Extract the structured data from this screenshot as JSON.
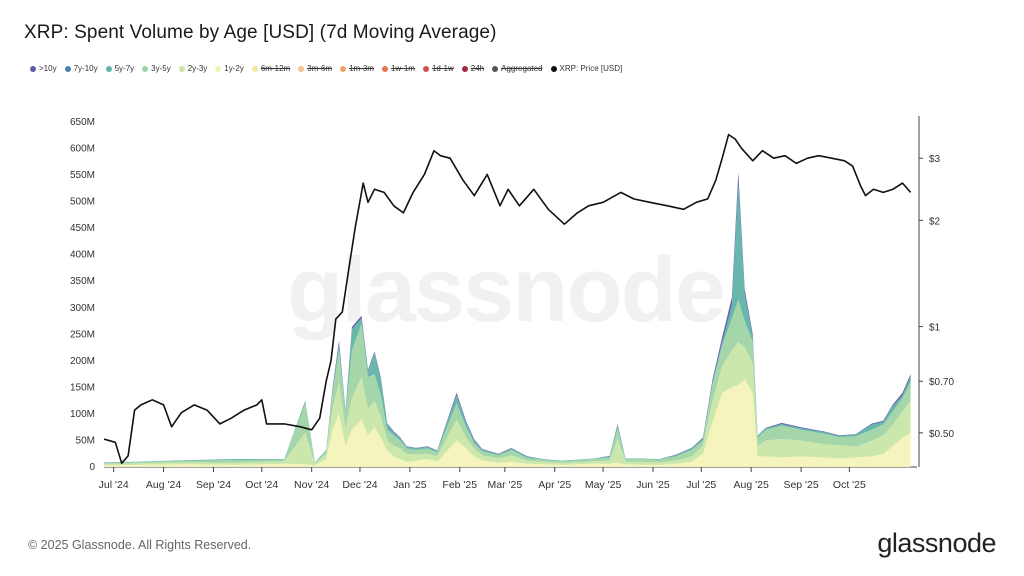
{
  "title": "XRP: Spent Volume by Age [USD] (7d Moving Average)",
  "footer": "© 2025 Glassnode. All Rights Reserved.",
  "brand": "glassnode",
  "watermark": "glassnode",
  "legend": [
    {
      "label": ">10y",
      "color": "#5b5ea6",
      "active": true
    },
    {
      "label": "7y-10y",
      "color": "#4a7fb0",
      "active": true
    },
    {
      "label": "5y-7y",
      "color": "#5fb3a8",
      "active": true
    },
    {
      "label": "3y-5y",
      "color": "#9fd4a5",
      "active": true
    },
    {
      "label": "2y-3y",
      "color": "#c9e6a6",
      "active": true
    },
    {
      "label": "1y-2y",
      "color": "#f3f3b8",
      "active": true
    },
    {
      "label": "6m-12m",
      "color": "#f2e6a0",
      "active": false
    },
    {
      "label": "3m-6m",
      "color": "#f5c48c",
      "active": false
    },
    {
      "label": "1m-3m",
      "color": "#f0a070",
      "active": false
    },
    {
      "label": "1w-1m",
      "color": "#e07850",
      "active": false
    },
    {
      "label": "1d-1w",
      "color": "#d05050",
      "active": false
    },
    {
      "label": "24h",
      "color": "#a02840",
      "active": false
    },
    {
      "label": "Aggregated",
      "color": "#555555",
      "active": false
    },
    {
      "label": "XRP: Price [USD]",
      "color": "#111111",
      "active": true
    }
  ],
  "chart_data": {
    "type": "area",
    "x_ticks": [
      "Jul '24",
      "Aug '24",
      "Sep '24",
      "Oct '24",
      "Nov '24",
      "Dec '24",
      "Jan '25",
      "Feb '25",
      "Mar '25",
      "Apr '25",
      "May '25",
      "Jun '25",
      "Jul '25",
      "Aug '25",
      "Sep '25",
      "Oct '25"
    ],
    "y_left": {
      "ticks": [
        "0",
        "50M",
        "100M",
        "150M",
        "200M",
        "250M",
        "300M",
        "350M",
        "400M",
        "450M",
        "500M",
        "550M",
        "600M",
        "650M"
      ],
      "range": [
        0,
        650000000
      ]
    },
    "y_right": {
      "ticks": [
        "$0.50",
        "$0.70",
        "$1",
        "$2",
        "$3"
      ],
      "tick_values": [
        0.5,
        0.7,
        1,
        2,
        3
      ],
      "scale": "log",
      "range": [
        0.4,
        3.8
      ]
    },
    "x_range": [
      "2024-06-25",
      "2025-11-12"
    ],
    "price_series": {
      "name": "XRP: Price [USD]",
      "x": [
        "2024-06-25",
        "2024-07-02",
        "2024-07-06",
        "2024-07-10",
        "2024-07-14",
        "2024-07-18",
        "2024-07-25",
        "2024-08-01",
        "2024-08-06",
        "2024-08-12",
        "2024-08-20",
        "2024-08-28",
        "2024-09-05",
        "2024-09-12",
        "2024-09-20",
        "2024-09-28",
        "2024-10-01",
        "2024-10-04",
        "2024-10-15",
        "2024-10-25",
        "2024-11-01",
        "2024-11-06",
        "2024-11-10",
        "2024-11-13",
        "2024-11-16",
        "2024-11-20",
        "2024-11-24",
        "2024-11-28",
        "2024-12-03",
        "2024-12-06",
        "2024-12-10",
        "2024-12-16",
        "2024-12-22",
        "2024-12-28",
        "2025-01-03",
        "2025-01-10",
        "2025-01-16",
        "2025-01-20",
        "2025-01-26",
        "2025-02-03",
        "2025-02-10",
        "2025-02-18",
        "2025-02-26",
        "2025-03-03",
        "2025-03-10",
        "2025-03-19",
        "2025-03-28",
        "2025-04-07",
        "2025-04-15",
        "2025-04-22",
        "2025-05-01",
        "2025-05-12",
        "2025-05-20",
        "2025-05-30",
        "2025-06-10",
        "2025-06-20",
        "2025-06-28",
        "2025-07-05",
        "2025-07-10",
        "2025-07-14",
        "2025-07-18",
        "2025-07-22",
        "2025-07-26",
        "2025-08-02",
        "2025-08-08",
        "2025-08-15",
        "2025-08-22",
        "2025-08-29",
        "2025-09-05",
        "2025-09-12",
        "2025-09-20",
        "2025-09-28",
        "2025-10-03",
        "2025-10-08",
        "2025-10-11",
        "2025-10-16",
        "2025-10-22",
        "2025-10-28",
        "2025-11-03",
        "2025-11-08"
      ],
      "values": [
        0.48,
        0.47,
        0.41,
        0.43,
        0.58,
        0.6,
        0.62,
        0.6,
        0.52,
        0.57,
        0.6,
        0.58,
        0.53,
        0.55,
        0.58,
        0.6,
        0.62,
        0.53,
        0.53,
        0.52,
        0.51,
        0.55,
        0.7,
        0.8,
        1.05,
        1.1,
        1.45,
        1.9,
        2.55,
        2.25,
        2.45,
        2.4,
        2.2,
        2.1,
        2.4,
        2.7,
        3.15,
        3.05,
        3.0,
        2.6,
        2.35,
        2.7,
        2.2,
        2.45,
        2.2,
        2.45,
        2.15,
        1.95,
        2.1,
        2.2,
        2.25,
        2.4,
        2.3,
        2.25,
        2.2,
        2.15,
        2.25,
        2.3,
        2.6,
        3.0,
        3.5,
        3.4,
        3.2,
        2.95,
        3.15,
        3.0,
        3.05,
        2.9,
        3.0,
        3.05,
        3.0,
        2.95,
        2.85,
        2.5,
        2.35,
        2.45,
        2.4,
        2.45,
        2.55,
        2.4
      ]
    },
    "series": [
      {
        "name": "1y-2y",
        "color": "#f3f3b8",
        "x": [
          "2024-06-25",
          "2024-07-15",
          "2024-08-15",
          "2024-09-15",
          "2024-10-15",
          "2024-10-28",
          "2024-11-03",
          "2024-11-10",
          "2024-11-14",
          "2024-11-18",
          "2024-11-22",
          "2024-11-26",
          "2024-12-02",
          "2024-12-06",
          "2024-12-10",
          "2024-12-14",
          "2024-12-18",
          "2024-12-22",
          "2024-12-26",
          "2024-12-30",
          "2025-01-05",
          "2025-01-12",
          "2025-01-18",
          "2025-01-24",
          "2025-01-30",
          "2025-02-05",
          "2025-02-10",
          "2025-02-15",
          "2025-02-25",
          "2025-03-05",
          "2025-03-15",
          "2025-03-25",
          "2025-04-05",
          "2025-04-15",
          "2025-04-25",
          "2025-05-05",
          "2025-05-10",
          "2025-05-15",
          "2025-05-25",
          "2025-06-05",
          "2025-06-15",
          "2025-06-25",
          "2025-07-02",
          "2025-07-08",
          "2025-07-14",
          "2025-07-20",
          "2025-07-24",
          "2025-07-28",
          "2025-08-02",
          "2025-08-05",
          "2025-08-10",
          "2025-08-20",
          "2025-09-01",
          "2025-09-15",
          "2025-09-25",
          "2025-10-05",
          "2025-10-15",
          "2025-10-22",
          "2025-10-28",
          "2025-11-03",
          "2025-11-08"
        ],
        "values": [
          3,
          4,
          5,
          4,
          6,
          5,
          3,
          15,
          70,
          100,
          40,
          70,
          90,
          60,
          75,
          55,
          30,
          20,
          15,
          10,
          12,
          15,
          10,
          30,
          50,
          35,
          20,
          12,
          8,
          10,
          6,
          5,
          4,
          5,
          6,
          6,
          8,
          5,
          4,
          4,
          6,
          10,
          25,
          85,
          140,
          150,
          155,
          165,
          140,
          20,
          20,
          18,
          20,
          18,
          16,
          18,
          20,
          25,
          40,
          55,
          65
        ]
      },
      {
        "name": "2y-3y",
        "color": "#c9e6a6",
        "x": [
          "2024-06-25",
          "2024-07-15",
          "2024-08-15",
          "2024-09-15",
          "2024-10-15",
          "2024-10-28",
          "2024-11-03",
          "2024-11-10",
          "2024-11-14",
          "2024-11-18",
          "2024-11-22",
          "2024-11-26",
          "2024-12-02",
          "2024-12-06",
          "2024-12-10",
          "2024-12-14",
          "2024-12-18",
          "2024-12-22",
          "2024-12-26",
          "2024-12-30",
          "2025-01-05",
          "2025-01-12",
          "2025-01-18",
          "2025-01-24",
          "2025-01-30",
          "2025-02-05",
          "2025-02-10",
          "2025-02-15",
          "2025-02-25",
          "2025-03-05",
          "2025-03-15",
          "2025-03-25",
          "2025-04-05",
          "2025-04-15",
          "2025-04-25",
          "2025-05-05",
          "2025-05-10",
          "2025-05-15",
          "2025-05-25",
          "2025-06-05",
          "2025-06-15",
          "2025-06-25",
          "2025-07-02",
          "2025-07-08",
          "2025-07-14",
          "2025-07-20",
          "2025-07-24",
          "2025-07-28",
          "2025-08-02",
          "2025-08-05",
          "2025-08-10",
          "2025-08-20",
          "2025-09-01",
          "2025-09-15",
          "2025-09-25",
          "2025-10-05",
          "2025-10-15",
          "2025-10-22",
          "2025-10-28",
          "2025-11-03",
          "2025-11-08"
        ],
        "values": [
          3,
          3,
          4,
          4,
          5,
          60,
          3,
          10,
          40,
          60,
          30,
          60,
          80,
          50,
          50,
          40,
          20,
          20,
          20,
          15,
          12,
          10,
          10,
          25,
          40,
          20,
          15,
          10,
          8,
          12,
          6,
          5,
          4,
          4,
          5,
          6,
          45,
          5,
          6,
          5,
          6,
          10,
          15,
          40,
          50,
          70,
          80,
          60,
          55,
          20,
          30,
          35,
          30,
          25,
          25,
          20,
          30,
          35,
          40,
          50,
          60
        ]
      },
      {
        "name": "3y-5y",
        "color": "#9fd4a5",
        "x": [
          "2024-06-25",
          "2024-07-15",
          "2024-08-15",
          "2024-09-15",
          "2024-10-15",
          "2024-10-28",
          "2024-11-03",
          "2024-11-10",
          "2024-11-14",
          "2024-11-18",
          "2024-11-22",
          "2024-11-26",
          "2024-12-02",
          "2024-12-06",
          "2024-12-10",
          "2024-12-14",
          "2024-12-18",
          "2024-12-22",
          "2024-12-26",
          "2024-12-30",
          "2025-01-05",
          "2025-01-12",
          "2025-01-18",
          "2025-01-24",
          "2025-01-30",
          "2025-02-05",
          "2025-02-10",
          "2025-02-15",
          "2025-02-25",
          "2025-03-05",
          "2025-03-15",
          "2025-03-25",
          "2025-04-05",
          "2025-04-15",
          "2025-04-25",
          "2025-05-05",
          "2025-05-10",
          "2025-05-15",
          "2025-05-25",
          "2025-06-05",
          "2025-06-15",
          "2025-06-25",
          "2025-07-02",
          "2025-07-08",
          "2025-07-14",
          "2025-07-20",
          "2025-07-24",
          "2025-07-28",
          "2025-08-02",
          "2025-08-05",
          "2025-08-10",
          "2025-08-20",
          "2025-09-01",
          "2025-09-15",
          "2025-09-25",
          "2025-10-05",
          "2025-10-15",
          "2025-10-22",
          "2025-10-28",
          "2025-11-03",
          "2025-11-08"
        ],
        "values": [
          2,
          2,
          3,
          5,
          3,
          55,
          2,
          5,
          30,
          60,
          30,
          90,
          100,
          60,
          50,
          40,
          20,
          20,
          15,
          10,
          8,
          10,
          8,
          20,
          30,
          20,
          10,
          8,
          6,
          10,
          5,
          4,
          3,
          4,
          4,
          6,
          20,
          5,
          5,
          5,
          8,
          12,
          10,
          30,
          40,
          60,
          80,
          50,
          40,
          15,
          20,
          25,
          20,
          20,
          15,
          20,
          20,
          20,
          25,
          25,
          35
        ]
      },
      {
        "name": "5y-7y",
        "color": "#5fb3a8",
        "x": [
          "2024-06-25",
          "2024-07-15",
          "2024-08-15",
          "2024-09-15",
          "2024-10-15",
          "2024-10-28",
          "2024-11-03",
          "2024-11-10",
          "2024-11-14",
          "2024-11-18",
          "2024-11-22",
          "2024-11-26",
          "2024-12-02",
          "2024-12-06",
          "2024-12-10",
          "2024-12-14",
          "2024-12-18",
          "2024-12-22",
          "2024-12-26",
          "2024-12-30",
          "2025-01-05",
          "2025-01-12",
          "2025-01-18",
          "2025-01-24",
          "2025-01-30",
          "2025-02-05",
          "2025-02-10",
          "2025-02-15",
          "2025-02-25",
          "2025-03-05",
          "2025-03-15",
          "2025-03-25",
          "2025-04-05",
          "2025-04-15",
          "2025-04-25",
          "2025-05-05",
          "2025-05-10",
          "2025-05-15",
          "2025-05-25",
          "2025-06-05",
          "2025-06-15",
          "2025-06-25",
          "2025-07-02",
          "2025-07-08",
          "2025-07-14",
          "2025-07-20",
          "2025-07-24",
          "2025-07-28",
          "2025-08-02",
          "2025-08-05",
          "2025-08-10",
          "2025-08-20",
          "2025-09-01",
          "2025-09-15",
          "2025-09-25",
          "2025-10-05",
          "2025-10-15",
          "2025-10-22",
          "2025-10-28",
          "2025-11-03",
          "2025-11-08"
        ],
        "values": [
          1,
          1,
          1,
          2,
          1,
          5,
          1,
          2,
          5,
          10,
          5,
          40,
          10,
          10,
          40,
          30,
          10,
          5,
          5,
          3,
          3,
          3,
          2,
          8,
          15,
          8,
          5,
          3,
          2,
          3,
          2,
          1,
          1,
          1,
          1,
          2,
          6,
          1,
          1,
          1,
          2,
          3,
          3,
          5,
          5,
          25,
          220,
          50,
          10,
          3,
          3,
          3,
          3,
          3,
          3,
          3,
          10,
          5,
          10,
          5,
          10
        ]
      },
      {
        "name": ">10y",
        "color": "#5b5ea6",
        "x": [
          "2024-06-25",
          "2024-07-15",
          "2024-08-15",
          "2024-09-15",
          "2024-10-15",
          "2024-10-28",
          "2024-11-03",
          "2024-11-10",
          "2024-11-14",
          "2024-11-18",
          "2024-11-22",
          "2024-11-26",
          "2024-12-02",
          "2024-12-06",
          "2024-12-10",
          "2024-12-14",
          "2024-12-18",
          "2024-12-22",
          "2024-12-26",
          "2024-12-30",
          "2025-01-05",
          "2025-01-12",
          "2025-01-18",
          "2025-01-24",
          "2025-01-30",
          "2025-02-05",
          "2025-02-10",
          "2025-02-15",
          "2025-02-25",
          "2025-03-05",
          "2025-03-15",
          "2025-03-25",
          "2025-04-05",
          "2025-04-15",
          "2025-04-25",
          "2025-05-05",
          "2025-05-10",
          "2025-05-15",
          "2025-05-25",
          "2025-06-05",
          "2025-06-15",
          "2025-06-25",
          "2025-07-02",
          "2025-07-08",
          "2025-07-14",
          "2025-07-20",
          "2025-07-24",
          "2025-07-28",
          "2025-08-02",
          "2025-08-05",
          "2025-08-10",
          "2025-08-20",
          "2025-09-01",
          "2025-09-15",
          "2025-09-25",
          "2025-10-05",
          "2025-10-15",
          "2025-10-22",
          "2025-10-28",
          "2025-11-03",
          "2025-11-08"
        ],
        "values": [
          0,
          0,
          0,
          0,
          0,
          0,
          0,
          0,
          5,
          8,
          2,
          4,
          5,
          3,
          3,
          3,
          2,
          2,
          1,
          1,
          1,
          1,
          1,
          3,
          5,
          3,
          2,
          1,
          1,
          1,
          1,
          0,
          0,
          0,
          0,
          1,
          2,
          0,
          0,
          0,
          1,
          1,
          2,
          5,
          10,
          15,
          20,
          10,
          5,
          1,
          1,
          2,
          2,
          1,
          1,
          1,
          2,
          2,
          3,
          5,
          5
        ]
      }
    ]
  }
}
